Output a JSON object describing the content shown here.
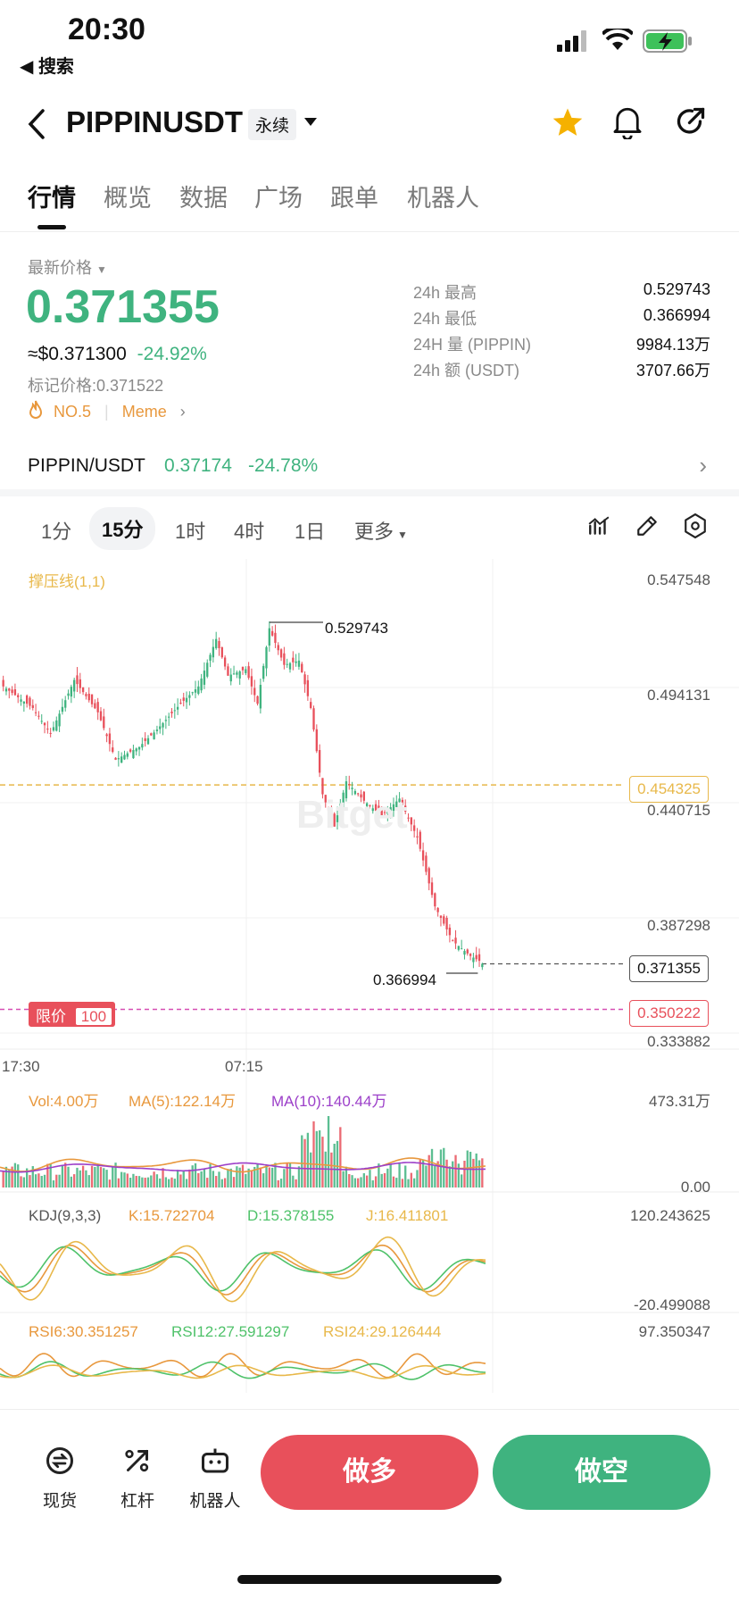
{
  "status_bar": {
    "time": "20:30",
    "back_label": "◀ 搜索"
  },
  "header": {
    "symbol": "PIPPINUSDT",
    "contract_type": "永续"
  },
  "tabs": [
    "行情",
    "概览",
    "数据",
    "广场",
    "跟单",
    "机器人"
  ],
  "price": {
    "latest_label": "最新价格",
    "latest": "0.371355",
    "usd_equiv": "≈$0.371300",
    "change_pct": "-24.92%",
    "mark_label": "标记价格:",
    "mark_price": "0.371522",
    "rank": "NO.5",
    "category": "Meme"
  },
  "stats": [
    {
      "label": "24h  最高",
      "value": "0.529743"
    },
    {
      "label": "24h  最低",
      "value": "0.366994"
    },
    {
      "label": "24H  量 (PIPPIN)",
      "value": "9984.13万"
    },
    {
      "label": "24h  额 (USDT)",
      "value": "3707.66万"
    }
  ],
  "spot": {
    "pair": "PIPPIN/USDT",
    "price": "0.37174",
    "change": "-24.78%"
  },
  "timeframes": {
    "items": [
      "1分",
      "15分",
      "1时",
      "4时",
      "1日"
    ],
    "more": "更多",
    "active_index": 1
  },
  "main_chart": {
    "indicator_label": "撑压线(1,1)",
    "y_axis": [
      "0.547548",
      "0.494131",
      "0.440715",
      "0.387298",
      "0.333882"
    ],
    "support_line": "0.454325",
    "current_price": "0.371355",
    "limit_order": {
      "label": "限价",
      "qty": "100",
      "price": "0.350222"
    },
    "high_marker": "0.529743",
    "low_marker": "0.366994",
    "x_axis": [
      "17:30",
      "07:15"
    ],
    "watermark": "Bitget"
  },
  "volume": {
    "vol": "Vol:4.00万",
    "ma5": "MA(5):122.14万",
    "ma10": "MA(10):140.44万",
    "max": "473.31万",
    "min": "0.00"
  },
  "kdj": {
    "label": "KDJ(9,3,3)",
    "k": "K:15.722704",
    "d": "D:15.378155",
    "j": "J:16.411801",
    "max": "120.243625",
    "min": "-20.499088"
  },
  "rsi": {
    "rsi6": "RSI6:30.351257",
    "rsi12": "RSI12:27.591297",
    "rsi24": "RSI24:29.126444",
    "max": "97.350347"
  },
  "bottom_nav": {
    "spot": "现货",
    "leverage": "杠杆",
    "robot": "机器人",
    "long": "做多",
    "short": "做空"
  },
  "colors": {
    "up": "#3fb37f",
    "down": "#e8505b",
    "accent": "#f5b100"
  }
}
